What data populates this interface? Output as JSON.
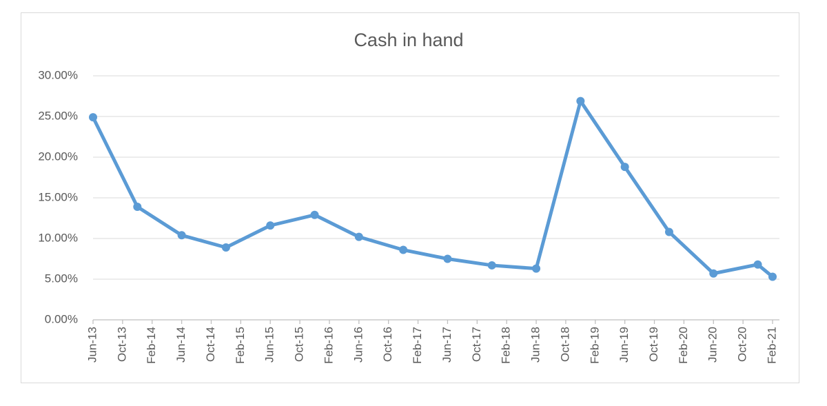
{
  "chart_data": {
    "type": "line",
    "title": "Cash in hand",
    "x": [
      "Jun-13",
      "Dec-13",
      "Jun-14",
      "Dec-14",
      "Jun-15",
      "Dec-15",
      "Jun-16",
      "Dec-16",
      "Jun-17",
      "Dec-17",
      "Jun-18",
      "Dec-18",
      "Jun-19",
      "Dec-19",
      "Jun-20",
      "Dec-20",
      "Feb-21"
    ],
    "series": [
      {
        "name": "Cash in hand",
        "color": "#5b9bd5",
        "values": [
          24.9,
          13.9,
          10.4,
          8.9,
          11.6,
          12.9,
          10.2,
          8.6,
          7.5,
          6.7,
          6.3,
          26.9,
          18.8,
          10.8,
          5.7,
          6.8,
          5.3
        ]
      }
    ],
    "xlim": [
      "Jun-13",
      "Feb-21"
    ],
    "xticks": [
      "Jun-13",
      "Oct-13",
      "Feb-14",
      "Jun-14",
      "Oct-14",
      "Feb-15",
      "Jun-15",
      "Oct-15",
      "Feb-16",
      "Jun-16",
      "Oct-16",
      "Feb-17",
      "Jun-17",
      "Oct-17",
      "Feb-18",
      "Jun-18",
      "Oct-18",
      "Feb-19",
      "Jun-19",
      "Oct-19",
      "Feb-20",
      "Jun-20",
      "Oct-20",
      "Feb-21"
    ],
    "ylim": [
      0,
      30
    ],
    "yticks": [
      {
        "value": 0,
        "label": "0.00%"
      },
      {
        "value": 5,
        "label": "5.00%"
      },
      {
        "value": 10,
        "label": "10.00%"
      },
      {
        "value": 15,
        "label": "15.00%"
      },
      {
        "value": 20,
        "label": "20.00%"
      },
      {
        "value": 25,
        "label": "25.00%"
      },
      {
        "value": 30,
        "label": "30.00%"
      }
    ],
    "grid": true
  }
}
